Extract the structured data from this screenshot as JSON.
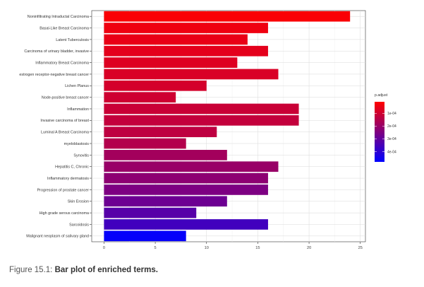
{
  "caption": {
    "label": "Figure 15.1: ",
    "title": "Bar plot of enriched terms."
  },
  "chart_data": {
    "type": "bar",
    "orientation": "horizontal",
    "title": "",
    "xlabel": "",
    "ylabel": "",
    "xlim": [
      -1.2,
      25.5
    ],
    "x_ticks": [
      0,
      5,
      10,
      15,
      20,
      25
    ],
    "grid": true,
    "categories": [
      "Noninfiltrating Intraductal Carcinoma",
      "Basal-Like Breast Carcinoma",
      "Latent Tuberculosis",
      "Carcinoma of urinary bladder, invasive",
      "Inflammatory Breast Carcinoma",
      "estrogen receptor-negative breast cancer",
      "Lichen Planus",
      "Node-positive breast cancer",
      "Inflammation",
      "Invasive carcinoma of breast",
      "Luminal A Breast Carcinoma",
      "myeloblastosis",
      "Synovitis",
      "Hepatitis C, Chronic",
      "Inflammatory dermatosis",
      "Progression of prostate cancer",
      "Skin Erosion",
      "High grade serous carcinoma",
      "Sarcoidosis",
      "Malignant neoplasm of salivary gland"
    ],
    "values": [
      24,
      16,
      14,
      16,
      13,
      17,
      10,
      7,
      19,
      19,
      11,
      8,
      12,
      17,
      16,
      16,
      12,
      9,
      16,
      8
    ],
    "color_values": [
      2e-05,
      4e-05,
      5e-05,
      6e-05,
      7e-05,
      8e-05,
      9e-05,
      0.0001,
      0.00011,
      0.00012,
      0.00013,
      0.00015,
      0.00018,
      0.0002,
      0.00022,
      0.00025,
      0.00028,
      0.00032,
      0.00036,
      0.00047
    ],
    "legend": {
      "title": "p.adjust",
      "position": "right",
      "ticks": [
        0.0001,
        0.0002,
        0.0003,
        0.0004
      ],
      "tick_labels": [
        "1e-04",
        "2e-04",
        "3e-04",
        "4e-04"
      ],
      "range": [
        1e-05,
        0.00048
      ],
      "low_color": "#ff0000",
      "high_color": "#0000ff"
    }
  }
}
